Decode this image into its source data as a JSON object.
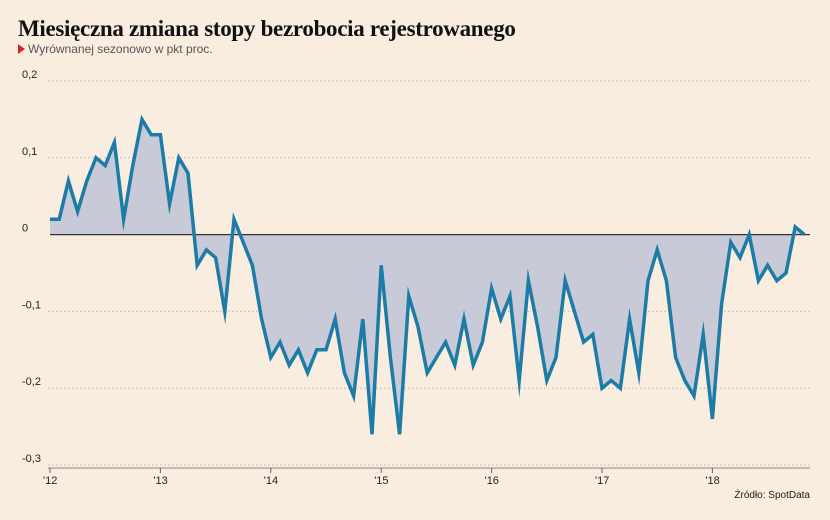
{
  "title": "Miesięczna zmiana stopy bezrobocia rejestrowanego",
  "subtitle": "Wyrównanej sezonowo w pkt proc.",
  "source": "Źródło: SpotData",
  "colors": {
    "background": "#f9ede0",
    "line": "#1c7ca6",
    "area": "#c2c7d6",
    "grid": "#b8b8b8",
    "zero_line": "#333333",
    "accent": "#d9232a"
  },
  "chart_data": {
    "type": "area",
    "title": "Miesięczna zmiana stopy bezrobocia rejestrowanego",
    "subtitle": "Wyrównanej sezonowo w pkt proc.",
    "xlabel": "",
    "ylabel": "",
    "ylim": [
      -0.3,
      0.2
    ],
    "y_ticks": [
      0.2,
      0.1,
      0,
      -0.1,
      -0.2,
      -0.3
    ],
    "y_tick_labels": [
      "0,2",
      "0,1",
      "0",
      "-0,1",
      "-0,2",
      "-0,3"
    ],
    "x_tick_labels": [
      "'12",
      "'13",
      "'14",
      "'15",
      "'16",
      "'17",
      "'18"
    ],
    "x_start": "2012-01",
    "grid": true,
    "series": [
      {
        "values": [
          0.02,
          0.02,
          0.07,
          0.03,
          0.07,
          0.1,
          0.09,
          0.12,
          0.02,
          0.09,
          0.15,
          0.13,
          0.13,
          0.04,
          0.1,
          0.08,
          -0.04,
          -0.02,
          -0.03,
          -0.1,
          0.02,
          -0.01,
          -0.04,
          -0.11,
          -0.16,
          -0.14,
          -0.17,
          -0.15,
          -0.18,
          -0.15,
          -0.15,
          -0.11,
          -0.18,
          -0.21,
          -0.11,
          -0.26,
          -0.04,
          -0.16,
          -0.26,
          -0.08,
          -0.12,
          -0.18,
          -0.16,
          -0.14,
          -0.17,
          -0.11,
          -0.17,
          -0.14,
          -0.07,
          -0.11,
          -0.08,
          -0.19,
          -0.06,
          -0.12,
          -0.19,
          -0.16,
          -0.06,
          -0.1,
          -0.14,
          -0.13,
          -0.2,
          -0.19,
          -0.2,
          -0.11,
          -0.18,
          -0.06,
          -0.02,
          -0.06,
          -0.16,
          -0.19,
          -0.21,
          -0.13,
          -0.24,
          -0.09,
          -0.01,
          -0.03,
          0.0,
          -0.06,
          -0.04,
          -0.06,
          -0.05,
          0.01,
          0.0
        ]
      }
    ]
  }
}
